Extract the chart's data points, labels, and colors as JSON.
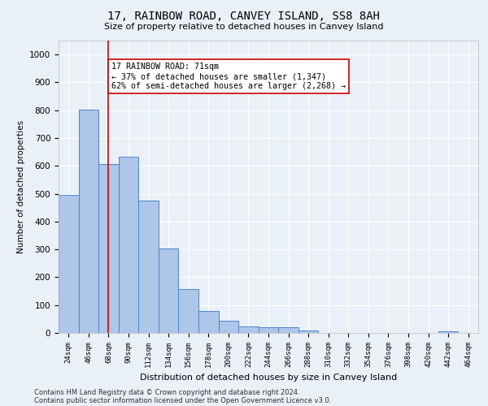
{
  "title": "17, RAINBOW ROAD, CANVEY ISLAND, SS8 8AH",
  "subtitle": "Size of property relative to detached houses in Canvey Island",
  "xlabel": "Distribution of detached houses by size in Canvey Island",
  "ylabel": "Number of detached properties",
  "footnote1": "Contains HM Land Registry data © Crown copyright and database right 2024.",
  "footnote2": "Contains public sector information licensed under the Open Government Licence v3.0.",
  "bar_labels": [
    "24sqm",
    "46sqm",
    "68sqm",
    "90sqm",
    "112sqm",
    "134sqm",
    "156sqm",
    "178sqm",
    "200sqm",
    "222sqm",
    "244sqm",
    "266sqm",
    "288sqm",
    "310sqm",
    "332sqm",
    "354sqm",
    "376sqm",
    "398sqm",
    "420sqm",
    "442sqm",
    "464sqm"
  ],
  "bar_values": [
    496,
    803,
    607,
    632,
    474,
    302,
    158,
    80,
    45,
    22,
    20,
    19,
    10,
    0,
    0,
    0,
    0,
    0,
    0,
    5,
    0
  ],
  "bar_color": "#aec6e8",
  "bar_edge_color": "#4a86c8",
  "ylim": [
    0,
    1050
  ],
  "yticks": [
    0,
    100,
    200,
    300,
    400,
    500,
    600,
    700,
    800,
    900,
    1000
  ],
  "vline_x": 2,
  "vline_color": "#cc0000",
  "annotation_text": "17 RAINBOW ROAD: 71sqm\n← 37% of detached houses are smaller (1,347)\n62% of semi-detached houses are larger (2,268) →",
  "bg_color": "#eaf0f8",
  "grid_color": "#ffffff",
  "annotation_box_color": "#ffffff",
  "annotation_box_edge": "#cc0000"
}
